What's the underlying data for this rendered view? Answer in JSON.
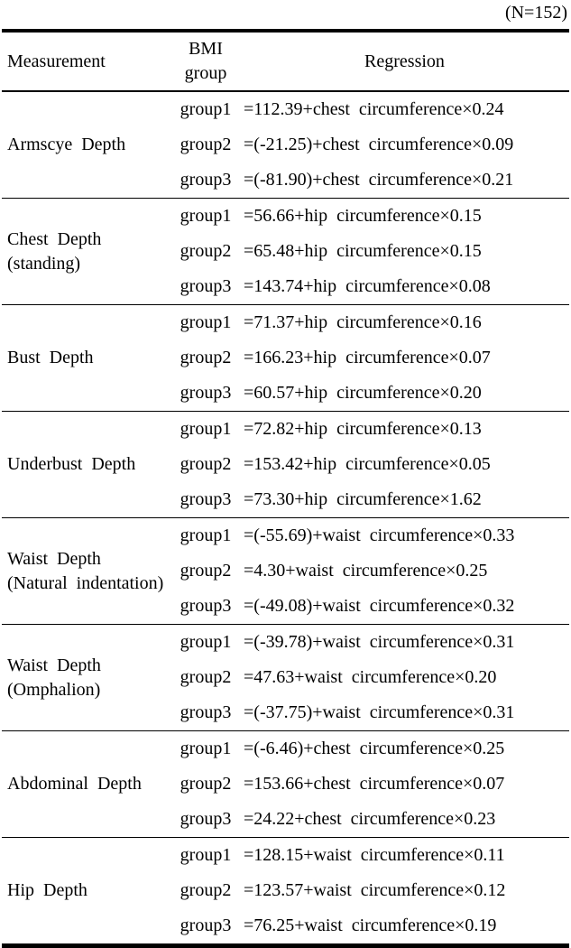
{
  "note": "(N=152)",
  "table": {
    "headers": {
      "measurement": "Measurement",
      "bmi_line1": "BMI",
      "bmi_line2": "group",
      "regression": "Regression"
    },
    "sections": [
      {
        "measurement": "Armscye Depth",
        "sub": "",
        "rows": [
          {
            "group": "group1",
            "equation": "=112.39+chest circumference×0.24"
          },
          {
            "group": "group2",
            "equation": "=(-21.25)+chest circumference×0.09"
          },
          {
            "group": "group3",
            "equation": "=(-81.90)+chest circumference×0.21"
          }
        ]
      },
      {
        "measurement": "Chest Depth",
        "sub": "(standing)",
        "rows": [
          {
            "group": "group1",
            "equation": "=56.66+hip circumference×0.15"
          },
          {
            "group": "group2",
            "equation": "=65.48+hip circumference×0.15"
          },
          {
            "group": "group3",
            "equation": "=143.74+hip circumference×0.08"
          }
        ]
      },
      {
        "measurement": "Bust Depth",
        "sub": "",
        "rows": [
          {
            "group": "group1",
            "equation": "=71.37+hip circumference×0.16"
          },
          {
            "group": "group2",
            "equation": "=166.23+hip circumference×0.07"
          },
          {
            "group": "group3",
            "equation": "=60.57+hip circumference×0.20"
          }
        ]
      },
      {
        "measurement": "Underbust Depth",
        "sub": "",
        "rows": [
          {
            "group": "group1",
            "equation": "=72.82+hip circumference×0.13"
          },
          {
            "group": "group2",
            "equation": "=153.42+hip circumference×0.05"
          },
          {
            "group": "group3",
            "equation": "=73.30+hip circumference×1.62"
          }
        ]
      },
      {
        "measurement": "Waist Depth",
        "sub": "(Natural indentation)",
        "rows": [
          {
            "group": "group1",
            "equation": "=(-55.69)+waist circumference×0.33"
          },
          {
            "group": "group2",
            "equation": "=4.30+waist circumference×0.25"
          },
          {
            "group": "group3",
            "equation": "=(-49.08)+waist circumference×0.32"
          }
        ]
      },
      {
        "measurement": "Waist Depth",
        "sub": "(Omphalion)",
        "rows": [
          {
            "group": "group1",
            "equation": "=(-39.78)+waist circumference×0.31"
          },
          {
            "group": "group2",
            "equation": "=47.63+waist circumference×0.20"
          },
          {
            "group": "group3",
            "equation": "=(-37.75)+waist circumference×0.31"
          }
        ]
      },
      {
        "measurement": "Abdominal Depth",
        "sub": "",
        "rows": [
          {
            "group": "group1",
            "equation": "=(-6.46)+chest circumference×0.25"
          },
          {
            "group": "group2",
            "equation": "=153.66+chest circumference×0.07"
          },
          {
            "group": "group3",
            "equation": "=24.22+chest circumference×0.23"
          }
        ]
      },
      {
        "measurement": "Hip Depth",
        "sub": "",
        "rows": [
          {
            "group": "group1",
            "equation": "=128.15+waist circumference×0.11"
          },
          {
            "group": "group2",
            "equation": "=123.57+waist circumference×0.12"
          },
          {
            "group": "group3",
            "equation": "=76.25+waist circumference×0.19"
          }
        ]
      }
    ]
  }
}
